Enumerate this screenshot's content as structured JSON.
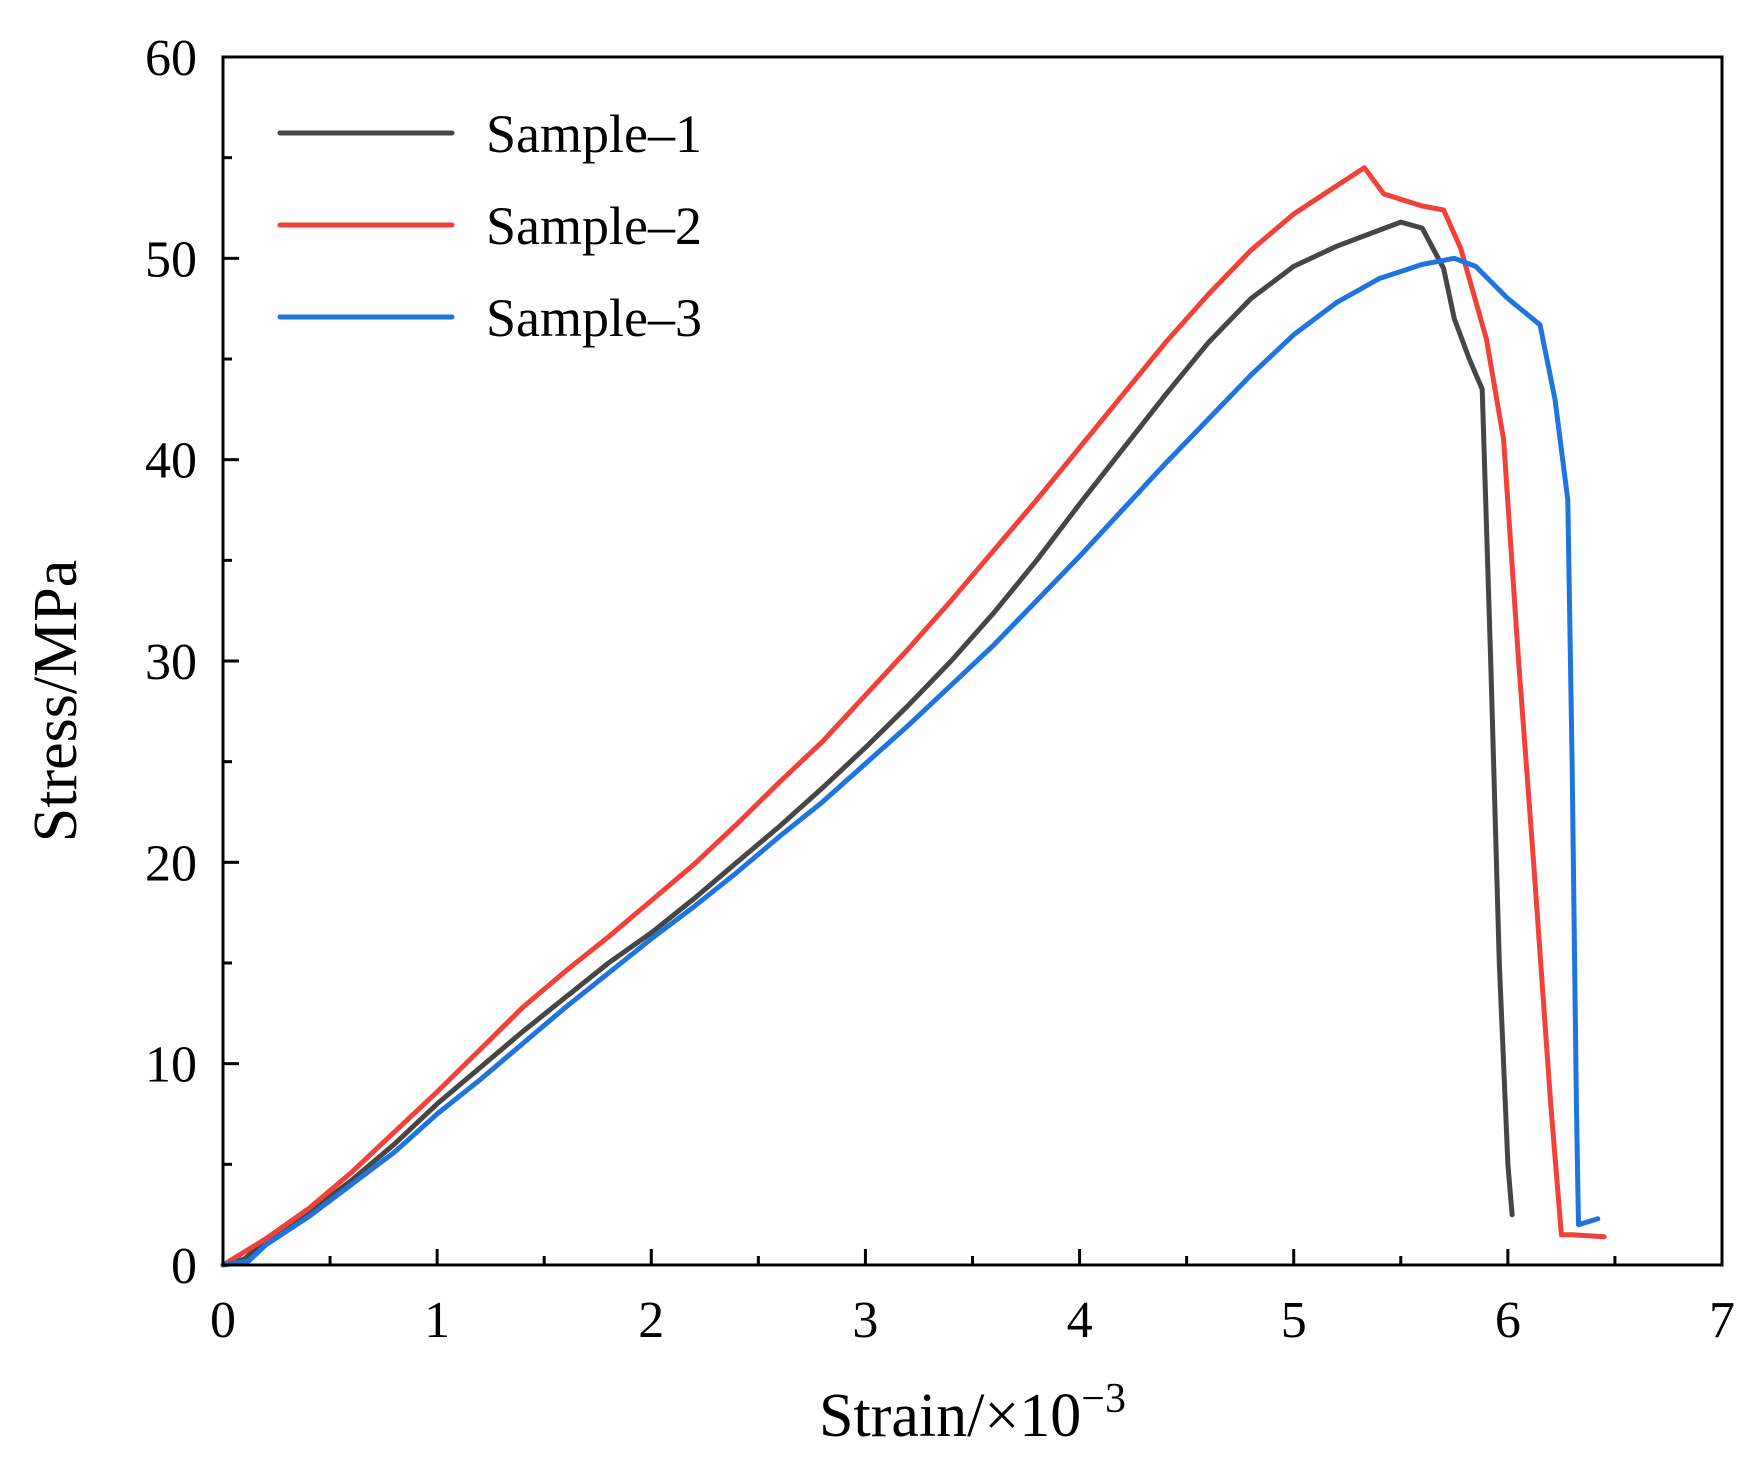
{
  "chart_data": {
    "type": "line",
    "title": "",
    "xlabel": "Strain/×10",
    "xlabel_superscript": "−3",
    "ylabel": "Stress/MPa",
    "xlim": [
      0,
      7
    ],
    "ylim": [
      0,
      60
    ],
    "x_ticks": [
      0,
      1,
      2,
      3,
      4,
      5,
      6,
      7
    ],
    "y_ticks": [
      0,
      10,
      20,
      30,
      40,
      50,
      60
    ],
    "x_tick_labels": [
      "0",
      "1",
      "2",
      "3",
      "4",
      "5",
      "6",
      "7"
    ],
    "y_tick_labels": [
      "0",
      "10",
      "20",
      "30",
      "40",
      "50",
      "60"
    ],
    "grid": false,
    "legend_position": "top-left",
    "series": [
      {
        "name": "Sample–1",
        "color": "#464646",
        "points": [
          [
            0,
            0
          ],
          [
            0.1,
            0.3
          ],
          [
            0.2,
            1.2
          ],
          [
            0.4,
            2.6
          ],
          [
            0.6,
            4.2
          ],
          [
            0.8,
            6.0
          ],
          [
            1.0,
            8.0
          ],
          [
            1.2,
            9.8
          ],
          [
            1.4,
            11.6
          ],
          [
            1.6,
            13.3
          ],
          [
            1.8,
            15.0
          ],
          [
            2.0,
            16.5
          ],
          [
            2.2,
            18.2
          ],
          [
            2.4,
            20.0
          ],
          [
            2.6,
            21.8
          ],
          [
            2.8,
            23.7
          ],
          [
            3.0,
            25.7
          ],
          [
            3.2,
            27.8
          ],
          [
            3.4,
            30.0
          ],
          [
            3.6,
            32.4
          ],
          [
            3.8,
            35.0
          ],
          [
            4.0,
            37.8
          ],
          [
            4.2,
            40.5
          ],
          [
            4.4,
            43.2
          ],
          [
            4.6,
            45.8
          ],
          [
            4.8,
            48.0
          ],
          [
            5.0,
            49.6
          ],
          [
            5.2,
            50.6
          ],
          [
            5.4,
            51.4
          ],
          [
            5.5,
            51.8
          ],
          [
            5.6,
            51.5
          ],
          [
            5.7,
            49.5
          ],
          [
            5.75,
            47.0
          ],
          [
            5.82,
            45.0
          ],
          [
            5.88,
            43.5
          ],
          [
            5.92,
            30.0
          ],
          [
            5.96,
            15.0
          ],
          [
            6.0,
            5.0
          ],
          [
            6.02,
            2.5
          ]
        ]
      },
      {
        "name": "Sample–2",
        "color": "#f0413a",
        "points": [
          [
            0,
            0
          ],
          [
            0.2,
            1.3
          ],
          [
            0.4,
            2.8
          ],
          [
            0.6,
            4.6
          ],
          [
            0.8,
            6.6
          ],
          [
            1.0,
            8.6
          ],
          [
            1.2,
            10.7
          ],
          [
            1.4,
            12.8
          ],
          [
            1.6,
            14.6
          ],
          [
            1.8,
            16.3
          ],
          [
            2.0,
            18.1
          ],
          [
            2.2,
            19.9
          ],
          [
            2.4,
            21.9
          ],
          [
            2.6,
            24.0
          ],
          [
            2.8,
            26.0
          ],
          [
            3.0,
            28.3
          ],
          [
            3.2,
            30.6
          ],
          [
            3.4,
            33.0
          ],
          [
            3.6,
            35.5
          ],
          [
            3.8,
            38.0
          ],
          [
            4.0,
            40.6
          ],
          [
            4.2,
            43.2
          ],
          [
            4.4,
            45.8
          ],
          [
            4.6,
            48.2
          ],
          [
            4.8,
            50.4
          ],
          [
            5.0,
            52.2
          ],
          [
            5.2,
            53.6
          ],
          [
            5.33,
            54.5
          ],
          [
            5.42,
            53.2
          ],
          [
            5.6,
            52.6
          ],
          [
            5.7,
            52.4
          ],
          [
            5.78,
            50.5
          ],
          [
            5.9,
            46.0
          ],
          [
            5.98,
            41.0
          ],
          [
            6.05,
            30.0
          ],
          [
            6.12,
            20.0
          ],
          [
            6.2,
            8.0
          ],
          [
            6.25,
            1.5
          ],
          [
            6.3,
            1.5
          ],
          [
            6.45,
            1.4
          ]
        ]
      },
      {
        "name": "Sample–3",
        "color": "#1f75de",
        "points": [
          [
            0,
            0
          ],
          [
            0.12,
            0.2
          ],
          [
            0.2,
            1.0
          ],
          [
            0.4,
            2.4
          ],
          [
            0.6,
            4.0
          ],
          [
            0.8,
            5.6
          ],
          [
            1.0,
            7.5
          ],
          [
            1.2,
            9.2
          ],
          [
            1.4,
            11.0
          ],
          [
            1.6,
            12.8
          ],
          [
            1.8,
            14.5
          ],
          [
            2.0,
            16.2
          ],
          [
            2.2,
            17.8
          ],
          [
            2.4,
            19.5
          ],
          [
            2.6,
            21.3
          ],
          [
            2.8,
            23.0
          ],
          [
            3.0,
            24.9
          ],
          [
            3.2,
            26.8
          ],
          [
            3.4,
            28.8
          ],
          [
            3.6,
            30.8
          ],
          [
            3.8,
            33.0
          ],
          [
            4.0,
            35.2
          ],
          [
            4.2,
            37.5
          ],
          [
            4.4,
            39.8
          ],
          [
            4.6,
            42.0
          ],
          [
            4.8,
            44.2
          ],
          [
            5.0,
            46.2
          ],
          [
            5.2,
            47.8
          ],
          [
            5.4,
            49.0
          ],
          [
            5.6,
            49.7
          ],
          [
            5.75,
            50.0
          ],
          [
            5.85,
            49.6
          ],
          [
            6.0,
            48.0
          ],
          [
            6.15,
            46.7
          ],
          [
            6.22,
            43.0
          ],
          [
            6.28,
            38.0
          ],
          [
            6.3,
            25.0
          ],
          [
            6.32,
            8.0
          ],
          [
            6.33,
            2.0
          ],
          [
            6.42,
            2.3
          ]
        ]
      }
    ]
  }
}
